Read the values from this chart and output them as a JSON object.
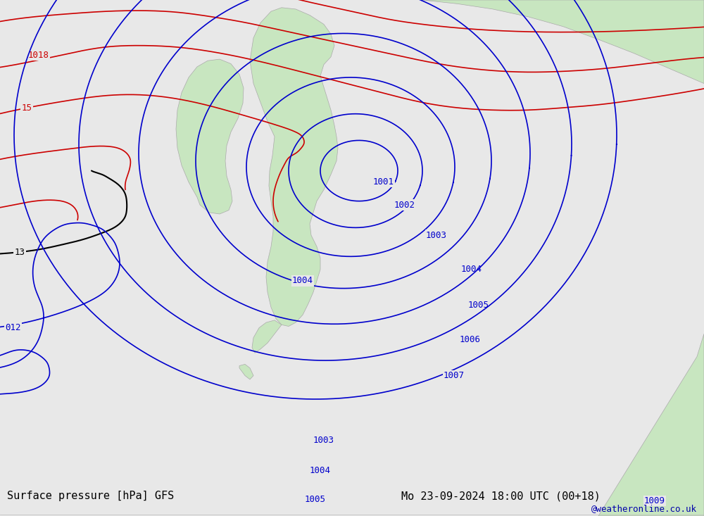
{
  "title_left": "Surface pressure [hPa] GFS",
  "title_right": "Mo 23-09-2024 18:00 UTC (00+18)",
  "watermark": "@weatheronline.co.uk",
  "background_color": "#e8e8e8",
  "land_color": "#c8e6c0",
  "sea_color": "#e8e8e8",
  "red_isobar_color": "#cc0000",
  "black_isobar_color": "#000000",
  "blue_isobar_color": "#0000cc",
  "figsize": [
    10.0,
    7.33
  ],
  "dpi": 100
}
